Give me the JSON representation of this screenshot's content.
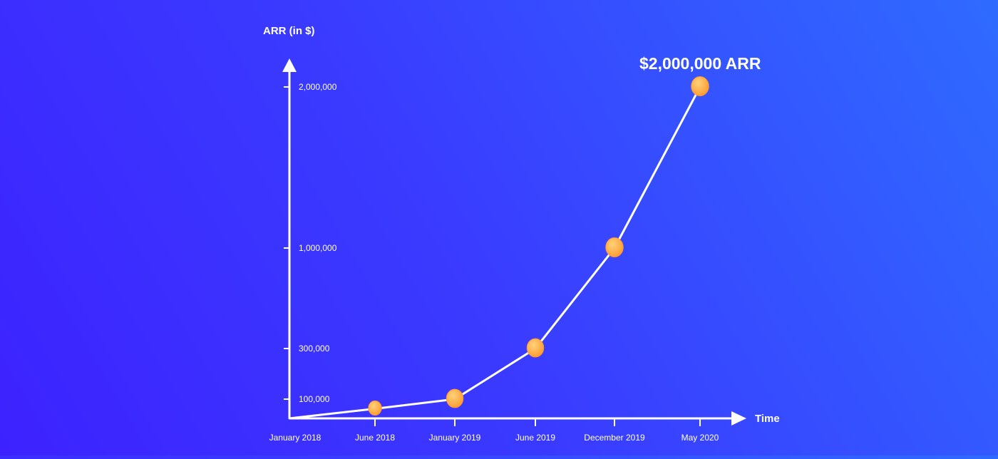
{
  "chart_data": {
    "type": "line",
    "ylabel": "ARR (in $)",
    "xlabel": "Time",
    "categories": [
      "January 2018",
      "June 2018",
      "January 2019",
      "June 2019",
      "December 2019",
      "May 2020"
    ],
    "values": [
      0,
      50000,
      100000,
      300000,
      1000000,
      2000000
    ],
    "yticks": [
      {
        "value": 100000,
        "label": "100,000"
      },
      {
        "value": 300000,
        "label": "300,000"
      },
      {
        "value": 1000000,
        "label": "1,000,000"
      },
      {
        "value": 2000000,
        "label": "2,000,000"
      }
    ],
    "annotation": "$2,000,000 ARR",
    "grid": false,
    "colors": {
      "line": "#ffffff",
      "marker": "#ffb640",
      "marker_edge": "#ff9430"
    }
  }
}
